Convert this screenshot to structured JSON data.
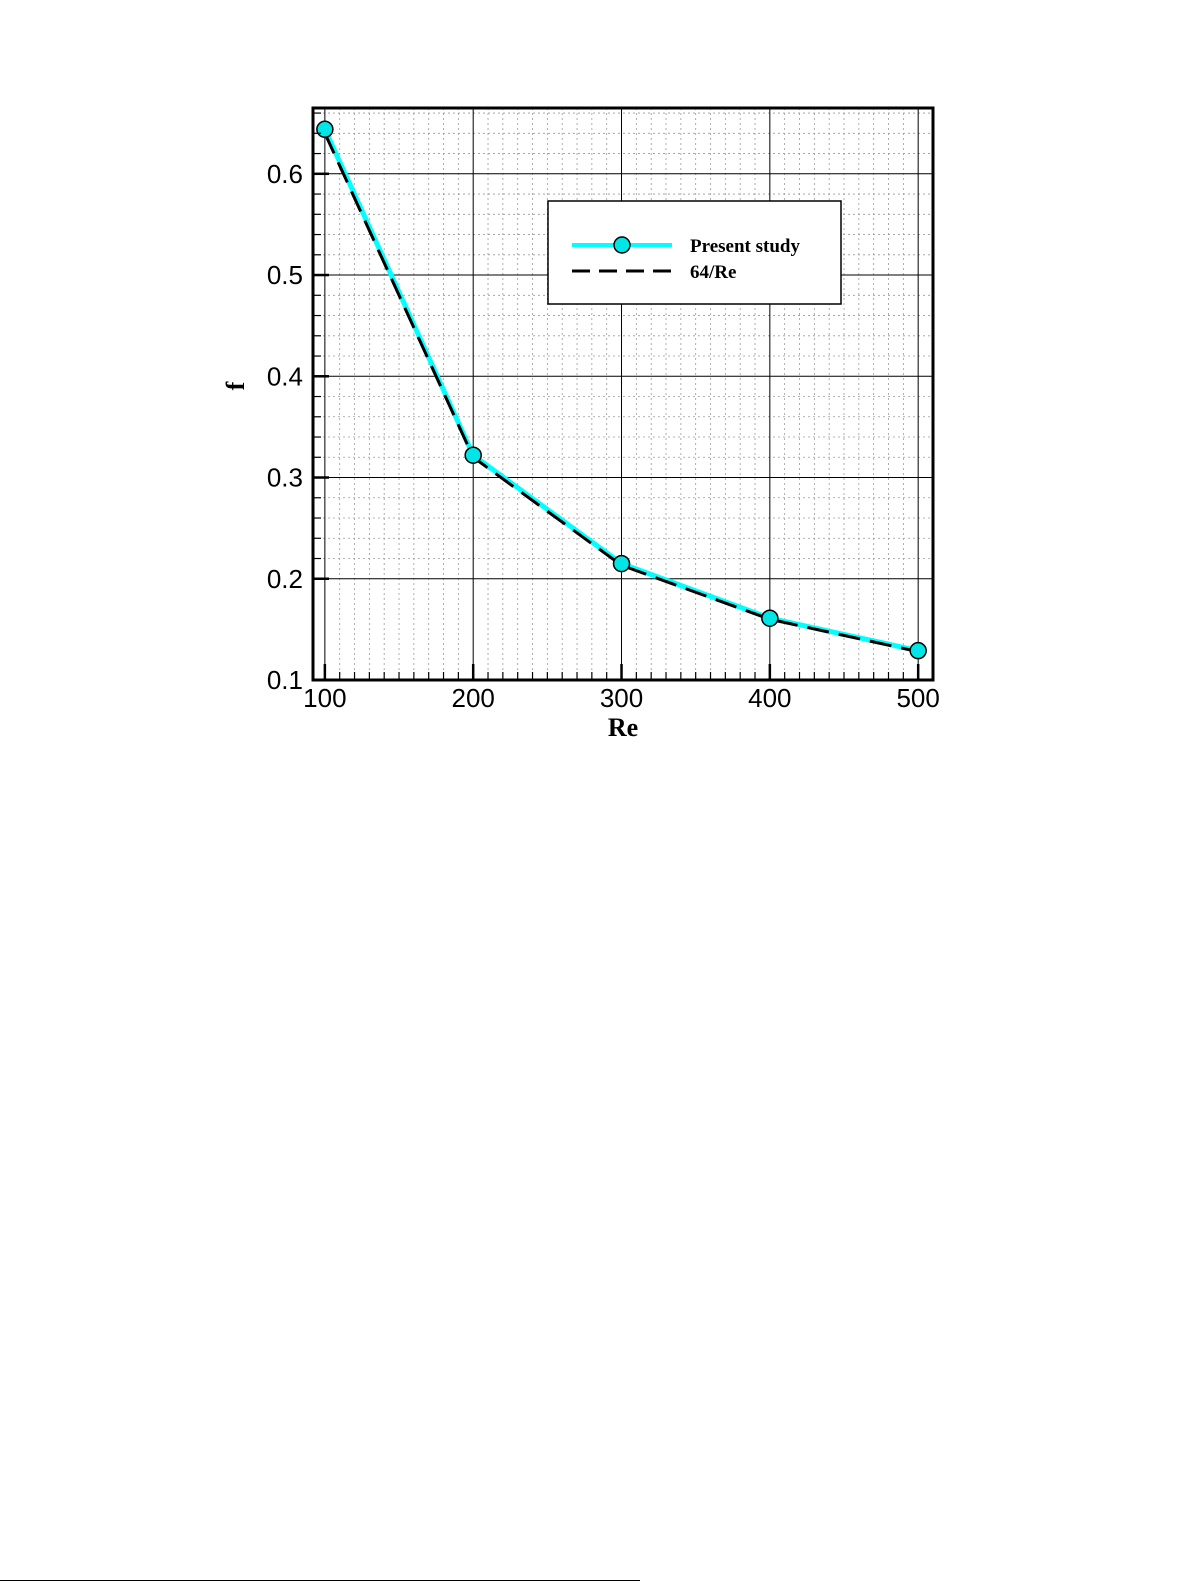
{
  "chart_data": {
    "type": "line",
    "xlabel": "Re",
    "ylabel": "f",
    "xlim": [
      92,
      510
    ],
    "ylim": [
      0.1,
      0.665
    ],
    "x_ticks": [
      100,
      200,
      300,
      400,
      500
    ],
    "x_tick_labels": [
      "100",
      "200",
      "300",
      "400",
      "500"
    ],
    "y_ticks": [
      0.1,
      0.2,
      0.3,
      0.4,
      0.5,
      0.6
    ],
    "y_tick_labels": [
      "0.1",
      "0.2",
      "0.3",
      "0.4",
      "0.5",
      "0.6"
    ],
    "grid": true,
    "legend_position": "top-right",
    "series": [
      {
        "name": "Present study",
        "x": [
          100,
          200,
          300,
          400,
          500
        ],
        "y": [
          0.644,
          0.322,
          0.215,
          0.161,
          0.129
        ],
        "color": "#00ffff",
        "marker": "circle",
        "style": "solid"
      },
      {
        "name": "64/Re",
        "x": [
          100,
          200,
          300,
          400,
          500
        ],
        "y": [
          0.64,
          0.32,
          0.2133,
          0.16,
          0.128
        ],
        "color": "#000000",
        "style": "dashed"
      }
    ]
  }
}
